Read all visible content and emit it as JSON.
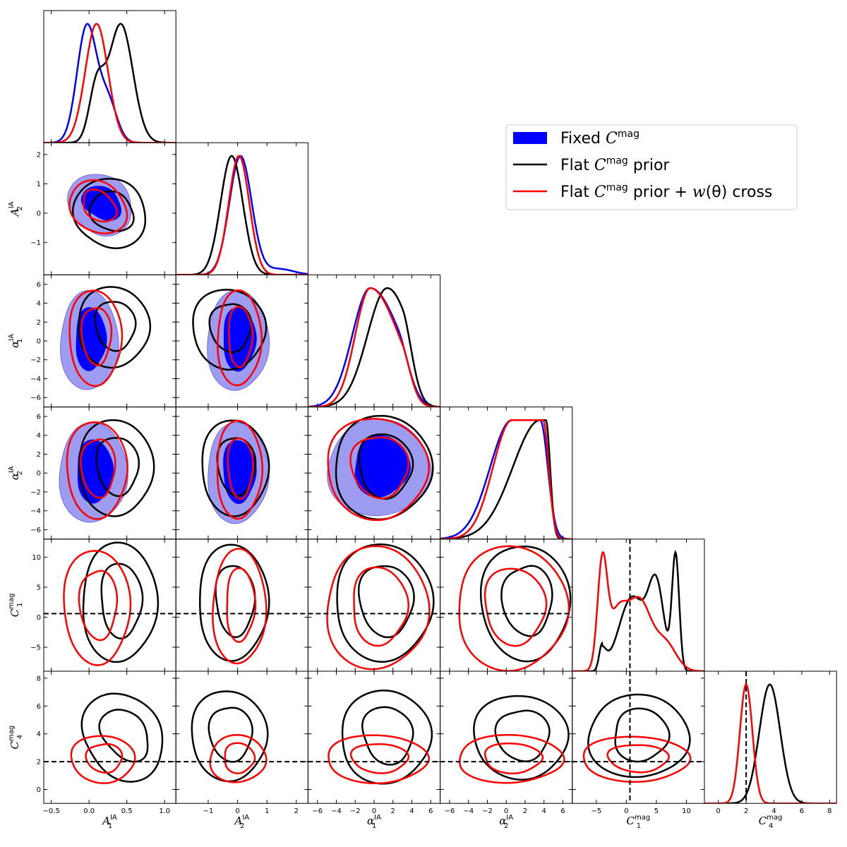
{
  "chart_data": {
    "type": "triangle-corner-plot",
    "parameters": [
      {
        "key": "A1",
        "symbol": "A",
        "sub": "1",
        "sup": "IA",
        "range": [
          -0.6,
          1.15
        ],
        "ticks": [
          "-0.5",
          "0.0",
          "0.5",
          "1.0"
        ],
        "tick_values": [
          -0.5,
          0.0,
          0.5,
          1.0
        ]
      },
      {
        "key": "A2",
        "symbol": "A",
        "sub": "2",
        "sup": "IA",
        "range": [
          -2.1,
          2.4
        ],
        "ticks": [
          "-1",
          "0",
          "1",
          "2"
        ],
        "tick_values": [
          -1,
          0,
          1,
          2
        ]
      },
      {
        "key": "alpha1",
        "symbol": "α",
        "sub": "1",
        "sup": "IA",
        "range": [
          -7,
          7
        ],
        "ticks": [
          "-6",
          "-4",
          "-2",
          "0",
          "2",
          "4",
          "6"
        ],
        "tick_values": [
          -6,
          -4,
          -2,
          0,
          2,
          4,
          6
        ]
      },
      {
        "key": "alpha2",
        "symbol": "α",
        "sub": "2",
        "sup": "IA",
        "range": [
          -7,
          7
        ],
        "ticks": [
          "-6",
          "-4",
          "-2",
          "0",
          "2",
          "4",
          "6"
        ],
        "tick_values": [
          -6,
          -4,
          -2,
          0,
          2,
          4,
          6
        ]
      },
      {
        "key": "C1",
        "symbol": "C",
        "sub": "1",
        "sup": "mag",
        "range": [
          -9,
          13
        ],
        "ticks": [
          "-5",
          "0",
          "5",
          "10"
        ],
        "tick_values": [
          -5,
          0,
          5,
          10
        ]
      },
      {
        "key": "C4",
        "symbol": "C",
        "sub": "4",
        "sup": "mag",
        "range": [
          -1,
          8.5
        ],
        "ticks": [
          "0",
          "2",
          "4",
          "6",
          "8"
        ],
        "tick_values": [
          0,
          2,
          4,
          6,
          8
        ]
      }
    ],
    "reference_values": {
      "C1": 0.6,
      "C4": 2.0
    },
    "series": [
      {
        "name": "Fixed C^mag",
        "color": "#0000ff",
        "style": "filled",
        "marginal_peaks": {
          "A1": -0.03,
          "A2": 0.1,
          "alpha1": -0.4,
          "alpha2": 0.6
        },
        "params": [
          "A1",
          "A2",
          "alpha1",
          "alpha2"
        ]
      },
      {
        "name": "Flat C^mag prior",
        "color": "#000000",
        "style": "line",
        "marginal_peaks": {
          "A1": 0.42,
          "A2": -0.2,
          "alpha1": 1.4,
          "alpha2": 3.6,
          "C1": 8.2,
          "C4": 3.7
        },
        "params": [
          "A1",
          "A2",
          "alpha1",
          "alpha2",
          "C1",
          "C4"
        ]
      },
      {
        "name": "Flat C^mag prior + w(θ) cross",
        "color": "#ff0000",
        "style": "line",
        "marginal_peaks": {
          "A1": 0.1,
          "A2": 0.05,
          "alpha1": -0.4,
          "alpha2": 0.6,
          "C1": -4.0,
          "C4": 2.0
        },
        "params": [
          "A1",
          "A2",
          "alpha1",
          "alpha2",
          "C1",
          "C4"
        ]
      }
    ],
    "legend_placement": "upper-right"
  },
  "legend": {
    "items": [
      {
        "pre": "Fixed ",
        "sym": "C",
        "sup": "mag",
        "post": ""
      },
      {
        "pre": "Flat ",
        "sym": "C",
        "sup": "mag",
        "post": " prior"
      },
      {
        "pre": "Flat ",
        "sym": "C",
        "sup": "mag",
        "post": " prior + ",
        "extra_it": "w",
        "extra_post": "(θ) cross"
      }
    ]
  }
}
